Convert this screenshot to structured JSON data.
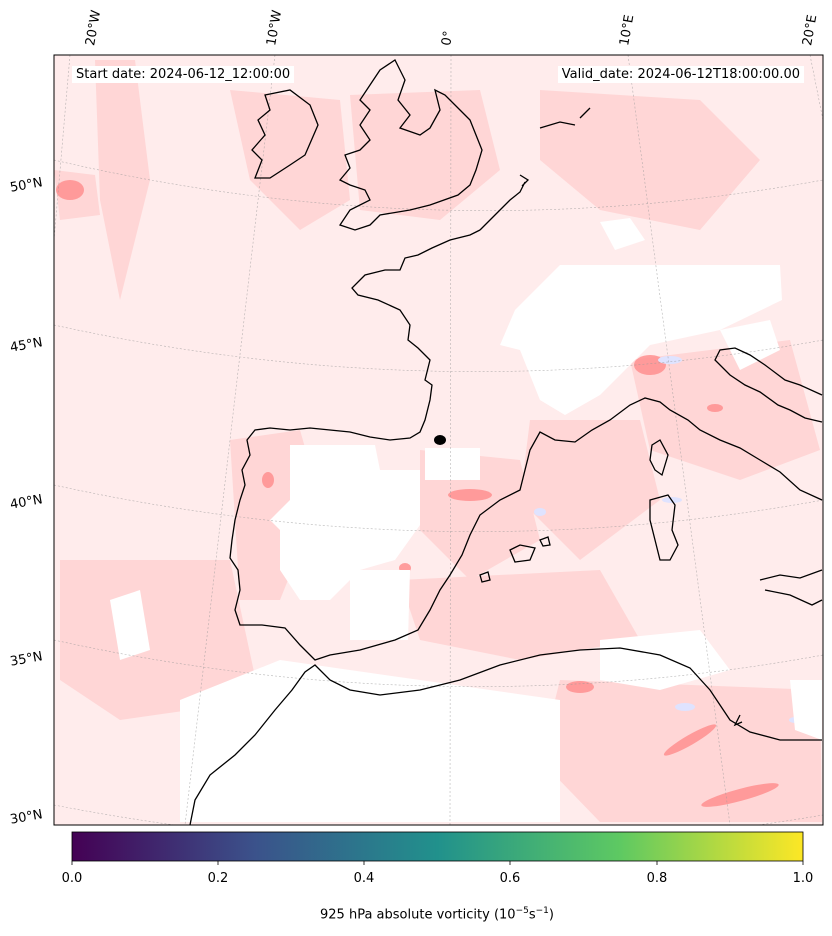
{
  "header": {
    "start_date": "Start date: 2024-06-12_12:00:00",
    "valid_date": "Valid_date: 2024-06-12T18:00:00.00"
  },
  "longitude_labels": [
    "20°W",
    "10°W",
    "0°",
    "10°E",
    "20°E"
  ],
  "latitude_labels": [
    "50°N",
    "45°N",
    "40°N",
    "35°N",
    "30°N"
  ],
  "colorbar": {
    "ticks": [
      "0.0",
      "0.2",
      "0.4",
      "0.6",
      "0.8",
      "1.0"
    ],
    "label": "925 hPa absolute vorticity (10",
    "label_exp1": "−5",
    "label_mid": "s",
    "label_exp2": "−1",
    "label_end": ")",
    "colormap": [
      "#440154",
      "#3b528b",
      "#21918c",
      "#5ec962",
      "#fde725"
    ]
  },
  "field_colors": {
    "background": "#ffecec",
    "positive_weak": "#ffd6d6",
    "positive_strong": "#ff8f8f",
    "negative": "#dfe3ff",
    "masked": "#ffffff",
    "coast": "#000000"
  },
  "marker": {
    "label": "",
    "color": "#000000"
  }
}
